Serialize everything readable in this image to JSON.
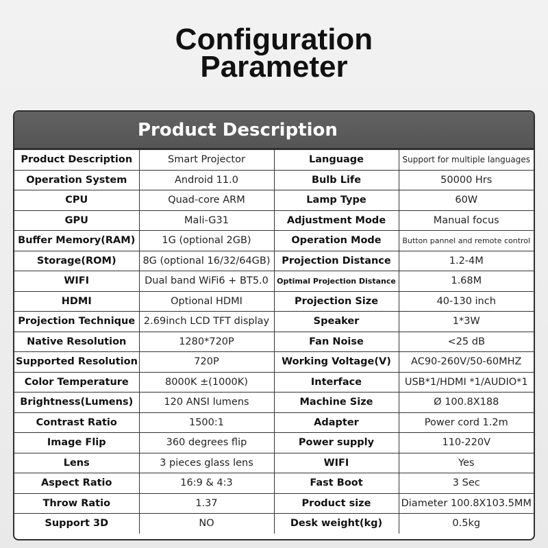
{
  "header": {
    "title": "Configuration Parameter"
  },
  "table": {
    "caption": "Product Description",
    "rows": [
      [
        "Product Description",
        "Smart Projector",
        "Language",
        "Support for multiple languages"
      ],
      [
        "Operation System",
        "Android 11.0",
        "Bulb Life",
        "50000 Hrs"
      ],
      [
        "CPU",
        "Quad-core ARM",
        "Lamp Type",
        "60W"
      ],
      [
        "GPU",
        "Mali-G31",
        "Adjustment Mode",
        "Manual focus"
      ],
      [
        "Buffer Memory(RAM)",
        "1G (optional 2GB)",
        "Operation Mode",
        "Button pannel and remote control"
      ],
      [
        "Storage(ROM)",
        "8G (optional 16/32/64GB)",
        "Projection Distance",
        "1.2-4M"
      ],
      [
        "WIFI",
        "Dual band WiFi6 + BT5.0",
        "Optimal Projection Distance",
        "1.68M"
      ],
      [
        "HDMI",
        "Optional HDMI",
        "Projection Size",
        "40-130 inch"
      ],
      [
        "Projection Technique",
        "2.69inch LCD TFT display",
        "Speaker",
        "1*3W"
      ],
      [
        "Native Resolution",
        "1280*720P",
        "Fan Noise",
        "<25 dB"
      ],
      [
        "Supported Resolution",
        "720P",
        "Working Voltage(V)",
        "AC90-260V/50-60MHZ"
      ],
      [
        "Color Temperature",
        "8000K ±(1000K)",
        "Interface",
        "USB*1/HDMI *1/AUDIO*1"
      ],
      [
        "Brightness(Lumens)",
        "120 ANSI lumens",
        "Machine Size",
        "Ø 100.8X188"
      ],
      [
        "Contrast Ratio",
        "1500:1",
        "Adapter",
        "Power cord 1.2m"
      ],
      [
        "Image Flip",
        "360 degrees flip",
        "Power supply",
        "110-220V"
      ],
      [
        "Lens",
        "3 pieces glass lens",
        "WIFI",
        "Yes"
      ],
      [
        "Aspect Ratio",
        "16:9 & 4:3",
        "Fast Boot",
        "3 Sec"
      ],
      [
        "Throw Ratio",
        "1.37",
        "Product size",
        "Diameter 100.8X103.5MM"
      ],
      [
        "Support 3D",
        "NO",
        "Desk weight(kg)",
        "0.5kg"
      ]
    ]
  }
}
